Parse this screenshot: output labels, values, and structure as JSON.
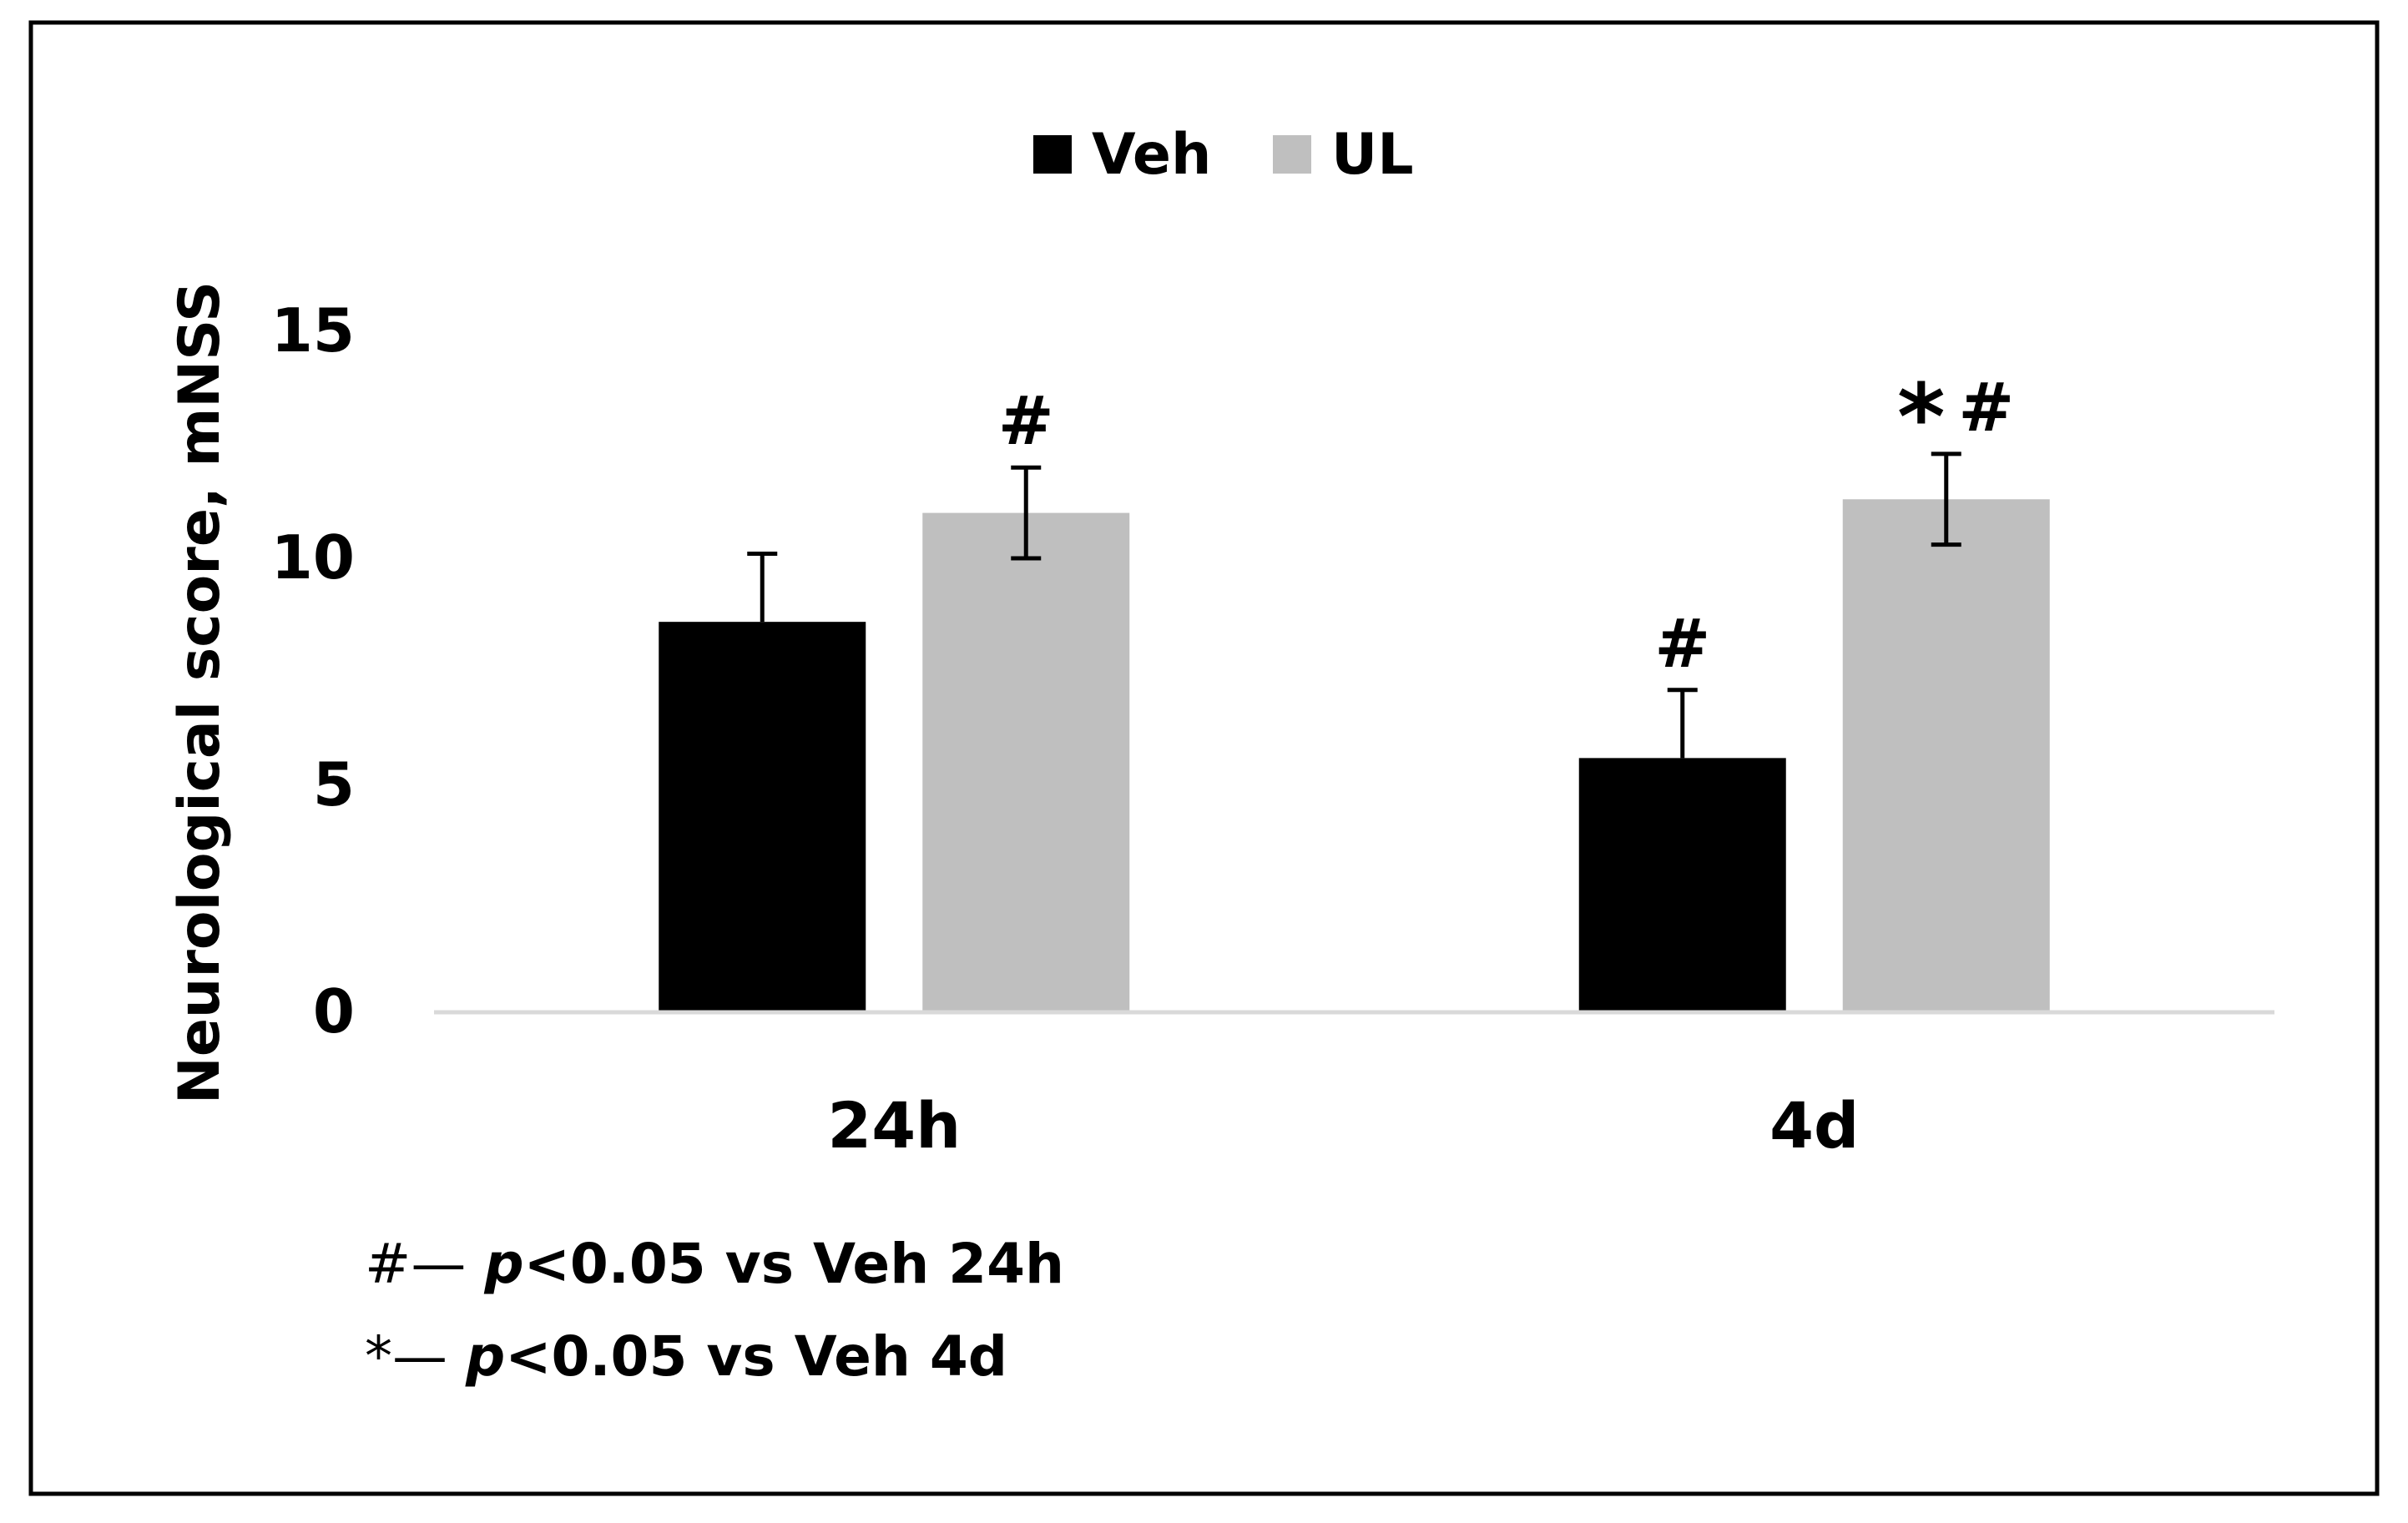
{
  "chart_data": {
    "type": "bar",
    "categories": [
      "24h",
      "4d"
    ],
    "series": [
      {
        "name": "Veh",
        "color": "#000000",
        "values": [
          8.6,
          5.6
        ],
        "errors": [
          1.5,
          1.5
        ],
        "annotations": [
          "",
          "#"
        ]
      },
      {
        "name": "UL",
        "color": "#bfbfbf",
        "values": [
          11.0,
          11.3
        ],
        "errors": [
          1.0,
          1.0
        ],
        "annotations": [
          "#",
          "*#"
        ]
      }
    ],
    "title": "",
    "xlabel": "",
    "ylabel": "Neurological score, mNSS",
    "ylim": [
      0,
      15
    ],
    "yticks": [
      0,
      5,
      10,
      15
    ],
    "grid": false,
    "legend_position": "top-center"
  },
  "notes": {
    "line1": {
      "symbol": "#",
      "dash": "—",
      "p": "p",
      "text": "<0.05 vs Veh 24h"
    },
    "line2": {
      "symbol": "*",
      "dash": "—",
      "p": "p",
      "text": "<0.05 vs Veh 4d"
    }
  }
}
